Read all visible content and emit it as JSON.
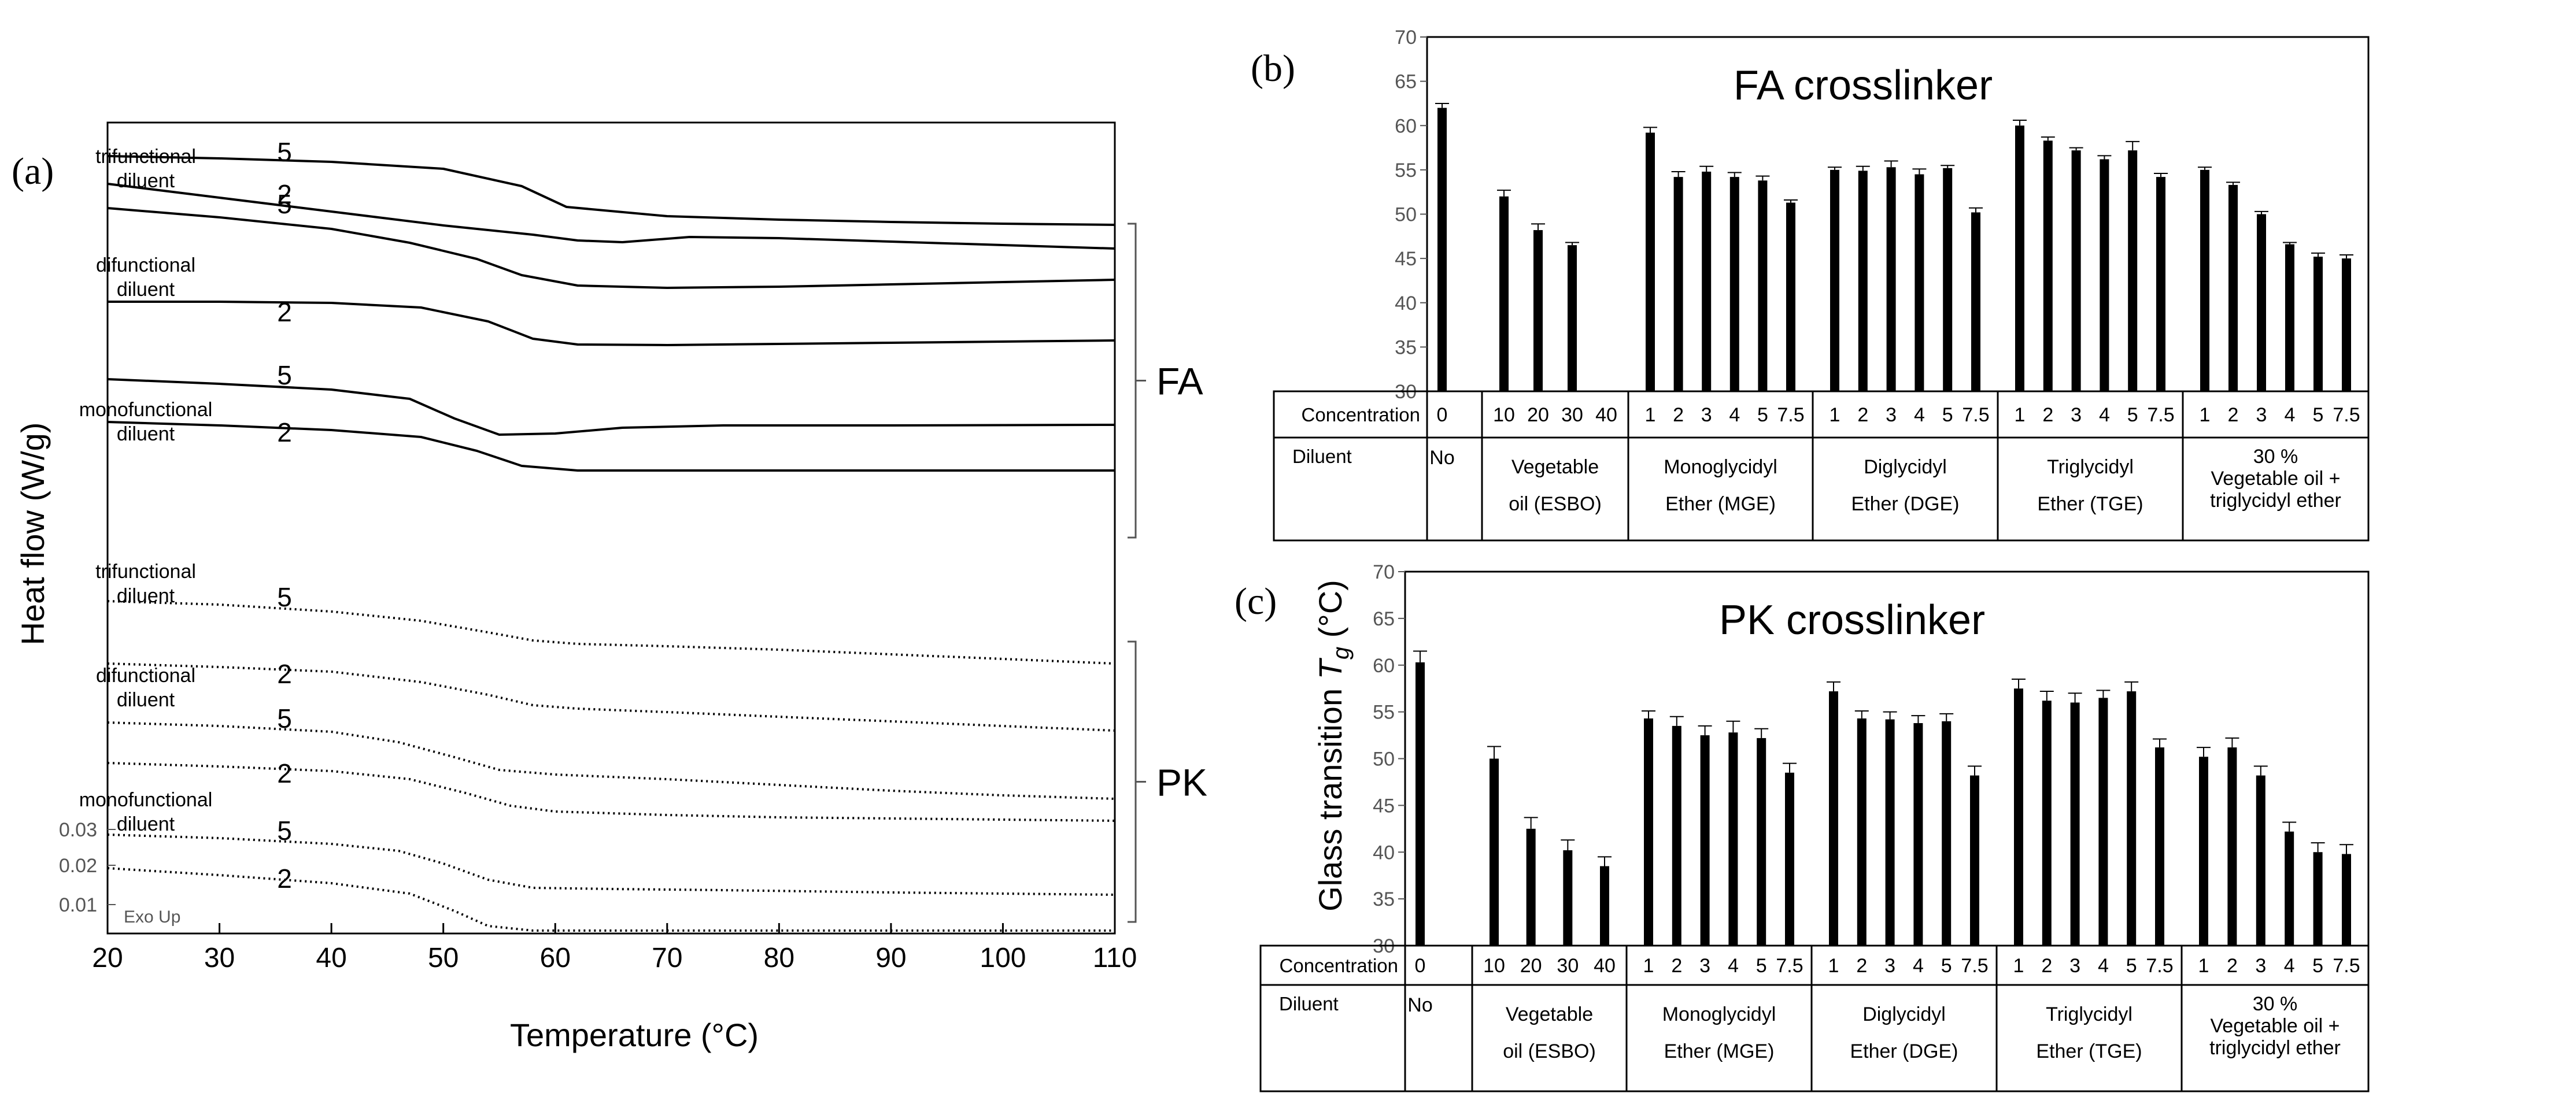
{
  "colors": {
    "ink": "#000000",
    "axis_grey": "#555555",
    "background": "#ffffff"
  },
  "chart_data": [
    {
      "panel": "(a)",
      "type": "line",
      "xlabel": "Temperature (°C)",
      "ylabel": "Heat flow (W/g)",
      "xlim": [
        20,
        110
      ],
      "xticks": [
        "20",
        "30",
        "40",
        "50",
        "60",
        "70",
        "80",
        "90",
        "100",
        "110"
      ],
      "scale_bar": {
        "labels": [
          "0.03",
          "0.02",
          "0.01"
        ]
      },
      "annotation": "Exo Up",
      "groups": [
        {
          "label": "FA",
          "style": "solid"
        },
        {
          "label": "PK",
          "style": "dotted"
        }
      ],
      "diluent_labels": [
        [
          "trifunctional",
          "diluent"
        ],
        [
          "difunctional",
          "diluent"
        ],
        [
          "monofunctional",
          "diluent"
        ],
        [
          "trifunctional",
          "diluent"
        ],
        [
          "difunctional",
          "diluent"
        ],
        [
          "monofunctional",
          "diluent"
        ]
      ],
      "series": [
        {
          "group": "FA",
          "diluent": "trifunctional",
          "concentration": "5",
          "tg": 59,
          "x": [
            20,
            30,
            40,
            50,
            57,
            61,
            70,
            80,
            90,
            100,
            110
          ],
          "y": [
            800,
            796,
            790,
            778,
            748,
            712,
            696,
            690,
            686,
            683,
            681
          ]
        },
        {
          "group": "FA",
          "diluent": "trifunctional",
          "concentration": "2",
          "tg": 63,
          "x": [
            20,
            30,
            40,
            50,
            58,
            62,
            66,
            72,
            80,
            90,
            100,
            110
          ],
          "y": [
            752,
            728,
            704,
            680,
            664,
            654,
            651,
            660,
            658,
            652,
            646,
            640
          ]
        },
        {
          "group": "FA",
          "diluent": "difunctional",
          "concentration": "5",
          "tg": 56,
          "x": [
            20,
            30,
            40,
            47,
            53,
            57,
            62,
            70,
            80,
            90,
            100,
            110
          ],
          "y": [
            710,
            694,
            674,
            650,
            622,
            594,
            576,
            572,
            574,
            578,
            582,
            586
          ]
        },
        {
          "group": "FA",
          "diluent": "difunctional",
          "concentration": "2",
          "tg": 58,
          "x": [
            20,
            30,
            40,
            48,
            54,
            58,
            62,
            70,
            80,
            90,
            100,
            110
          ],
          "y": [
            548,
            548,
            546,
            538,
            514,
            484,
            474,
            473,
            475,
            477,
            479,
            481
          ]
        },
        {
          "group": "FA",
          "diluent": "monofunctional",
          "concentration": "5",
          "tg": 53,
          "x": [
            20,
            30,
            40,
            47,
            51,
            55,
            60,
            66,
            75,
            90,
            110
          ],
          "y": [
            414,
            406,
            396,
            380,
            346,
            318,
            320,
            330,
            334,
            334,
            335
          ]
        },
        {
          "group": "FA",
          "diluent": "monofunctional",
          "concentration": "2",
          "tg": 56,
          "x": [
            20,
            30,
            40,
            48,
            53,
            57,
            62,
            70,
            80,
            90,
            110
          ],
          "y": [
            340,
            334,
            326,
            314,
            290,
            264,
            256,
            256,
            256,
            256,
            256
          ]
        },
        {
          "group": "PK",
          "diluent": "trifunctional",
          "concentration": "5",
          "tg": 55,
          "x": [
            20,
            30,
            40,
            48,
            54,
            58,
            62,
            70,
            80,
            90,
            100,
            110
          ],
          "y": [
            30,
            24,
            12,
            -4,
            -24,
            -38,
            -44,
            -48,
            -54,
            -62,
            -70,
            -78
          ]
        },
        {
          "group": "PK",
          "diluent": "trifunctional",
          "concentration": "2",
          "tg": 56,
          "x": [
            20,
            30,
            40,
            48,
            54,
            58,
            62,
            70,
            80,
            90,
            100,
            110
          ],
          "y": [
            -78,
            -84,
            -92,
            -110,
            -132,
            -150,
            -156,
            -162,
            -170,
            -178,
            -186,
            -194
          ]
        },
        {
          "group": "PK",
          "diluent": "difunctional",
          "concentration": "5",
          "tg": 52,
          "x": [
            20,
            30,
            40,
            46,
            51,
            55,
            60,
            70,
            80,
            90,
            100,
            110
          ],
          "y": [
            -180,
            -186,
            -196,
            -214,
            -240,
            -262,
            -270,
            -278,
            -288,
            -298,
            -306,
            -312
          ]
        },
        {
          "group": "PK",
          "diluent": "difunctional",
          "concentration": "2",
          "tg": 54,
          "x": [
            20,
            30,
            40,
            47,
            52,
            56,
            60,
            70,
            80,
            90,
            100,
            110
          ],
          "y": [
            -250,
            -256,
            -264,
            -278,
            -302,
            -324,
            -334,
            -340,
            -344,
            -346,
            -348,
            -350
          ]
        },
        {
          "group": "PK",
          "diluent": "monofunctional",
          "concentration": "5",
          "tg": 51,
          "x": [
            20,
            30,
            40,
            46,
            50,
            54,
            58,
            65,
            75,
            90,
            110
          ],
          "y": [
            -374,
            -380,
            -390,
            -402,
            -424,
            -452,
            -466,
            -468,
            -470,
            -474,
            -478
          ]
        },
        {
          "group": "PK",
          "diluent": "monofunctional",
          "concentration": "2",
          "tg": 52,
          "x": [
            20,
            30,
            40,
            47,
            51,
            54,
            58,
            65,
            75,
            90,
            110
          ],
          "y": [
            -432,
            -444,
            -458,
            -476,
            -506,
            -532,
            -540,
            -540,
            -540,
            -540,
            -540
          ]
        }
      ]
    },
    {
      "panel": "(b)",
      "type": "bar",
      "title": "FA crosslinker",
      "ylim": [
        30,
        70
      ],
      "yticks": [
        "70",
        "65",
        "60",
        "55",
        "50",
        "45",
        "40",
        "35",
        "30"
      ],
      "row_headers": [
        "Concentration",
        "Diluent"
      ],
      "groups": [
        {
          "concentrations": [
            "0"
          ],
          "diluent": [
            "No"
          ],
          "values": [
            62.0
          ],
          "errors": [
            0.5
          ]
        },
        {
          "concentrations": [
            "10",
            "20",
            "30",
            "40"
          ],
          "diluent": [
            "Vegetable",
            "oil (ESBO)"
          ],
          "values": [
            52.0,
            48.2,
            46.5,
            null
          ],
          "errors": [
            0.7,
            0.7,
            0.3,
            null
          ]
        },
        {
          "concentrations": [
            "1",
            "2",
            "3",
            "4",
            "5",
            "7.5"
          ],
          "diluent": [
            "Monoglycidyl",
            "Ether (MGE)"
          ],
          "values": [
            59.2,
            54.2,
            54.8,
            54.2,
            53.8,
            51.3
          ],
          "errors": [
            0.6,
            0.6,
            0.6,
            0.5,
            0.5,
            0.3
          ]
        },
        {
          "concentrations": [
            "1",
            "2",
            "3",
            "4",
            "5",
            "7.5"
          ],
          "diluent": [
            "Diglycidyl",
            "Ether (DGE)"
          ],
          "values": [
            55.0,
            54.9,
            55.3,
            54.5,
            55.2,
            50.2
          ],
          "errors": [
            0.3,
            0.5,
            0.7,
            0.6,
            0.3,
            0.5
          ]
        },
        {
          "concentrations": [
            "1",
            "2",
            "3",
            "4",
            "5",
            "7.5"
          ],
          "diluent": [
            "Triglycidyl",
            "Ether (TGE)"
          ],
          "values": [
            60.0,
            58.3,
            57.2,
            56.2,
            57.2,
            54.2
          ],
          "errors": [
            0.6,
            0.4,
            0.3,
            0.4,
            1.0,
            0.4
          ]
        },
        {
          "concentrations": [
            "1",
            "2",
            "3",
            "4",
            "5",
            "7.5"
          ],
          "diluent": [
            "30 %",
            "Vegetable oil +",
            "triglycidyl ether"
          ],
          "values": [
            55.0,
            53.3,
            50.0,
            46.6,
            45.2,
            45.0
          ],
          "errors": [
            0.3,
            0.3,
            0.3,
            0.2,
            0.4,
            0.4
          ]
        }
      ]
    },
    {
      "panel": "(c)",
      "type": "bar",
      "title": "PK crosslinker",
      "ylabel": "Glass transition T_g (°C)",
      "ylabel_parts": {
        "before": "Glass transition ",
        "symbol": "T",
        "subscript": "g",
        "after": " (°C)"
      },
      "ylim": [
        30,
        70
      ],
      "yticks": [
        "70",
        "65",
        "60",
        "55",
        "50",
        "45",
        "40",
        "35",
        "30"
      ],
      "row_headers": [
        "Concentration",
        "Diluent"
      ],
      "groups": [
        {
          "concentrations": [
            "0"
          ],
          "diluent": [
            "No"
          ],
          "values": [
            60.3
          ],
          "errors": [
            1.2
          ]
        },
        {
          "concentrations": [
            "10",
            "20",
            "30",
            "40"
          ],
          "diluent": [
            "Vegetable",
            "oil (ESBO)"
          ],
          "values": [
            50.0,
            42.5,
            40.2,
            38.5
          ],
          "errors": [
            1.3,
            1.2,
            1.1,
            1.0
          ]
        },
        {
          "concentrations": [
            "1",
            "2",
            "3",
            "4",
            "5",
            "7.5"
          ],
          "diluent": [
            "Monoglycidyl",
            "Ether (MGE)"
          ],
          "values": [
            54.3,
            53.5,
            52.5,
            52.8,
            52.2,
            48.5
          ],
          "errors": [
            0.8,
            1.0,
            1.0,
            1.2,
            1.0,
            1.0
          ]
        },
        {
          "concentrations": [
            "1",
            "2",
            "3",
            "4",
            "5",
            "7.5"
          ],
          "diluent": [
            "Diglycidyl",
            "Ether (DGE)"
          ],
          "values": [
            57.2,
            54.3,
            54.2,
            53.8,
            54.0,
            48.2
          ],
          "errors": [
            1.0,
            0.8,
            0.8,
            0.8,
            0.8,
            1.0
          ]
        },
        {
          "concentrations": [
            "1",
            "2",
            "3",
            "4",
            "5",
            "7.5"
          ],
          "diluent": [
            "Triglycidyl",
            "Ether (TGE)"
          ],
          "values": [
            57.5,
            56.2,
            56.0,
            56.5,
            57.2,
            51.2
          ],
          "errors": [
            1.0,
            1.0,
            1.0,
            0.8,
            1.0,
            0.9
          ]
        },
        {
          "concentrations": [
            "1",
            "2",
            "3",
            "4",
            "5",
            "7.5"
          ],
          "diluent": [
            "30 %",
            "Vegetable oil +",
            "triglycidyl ether"
          ],
          "values": [
            50.2,
            51.2,
            48.2,
            42.2,
            40.0,
            39.8
          ],
          "errors": [
            1.0,
            1.0,
            1.0,
            1.0,
            1.0,
            1.0
          ]
        }
      ]
    }
  ]
}
